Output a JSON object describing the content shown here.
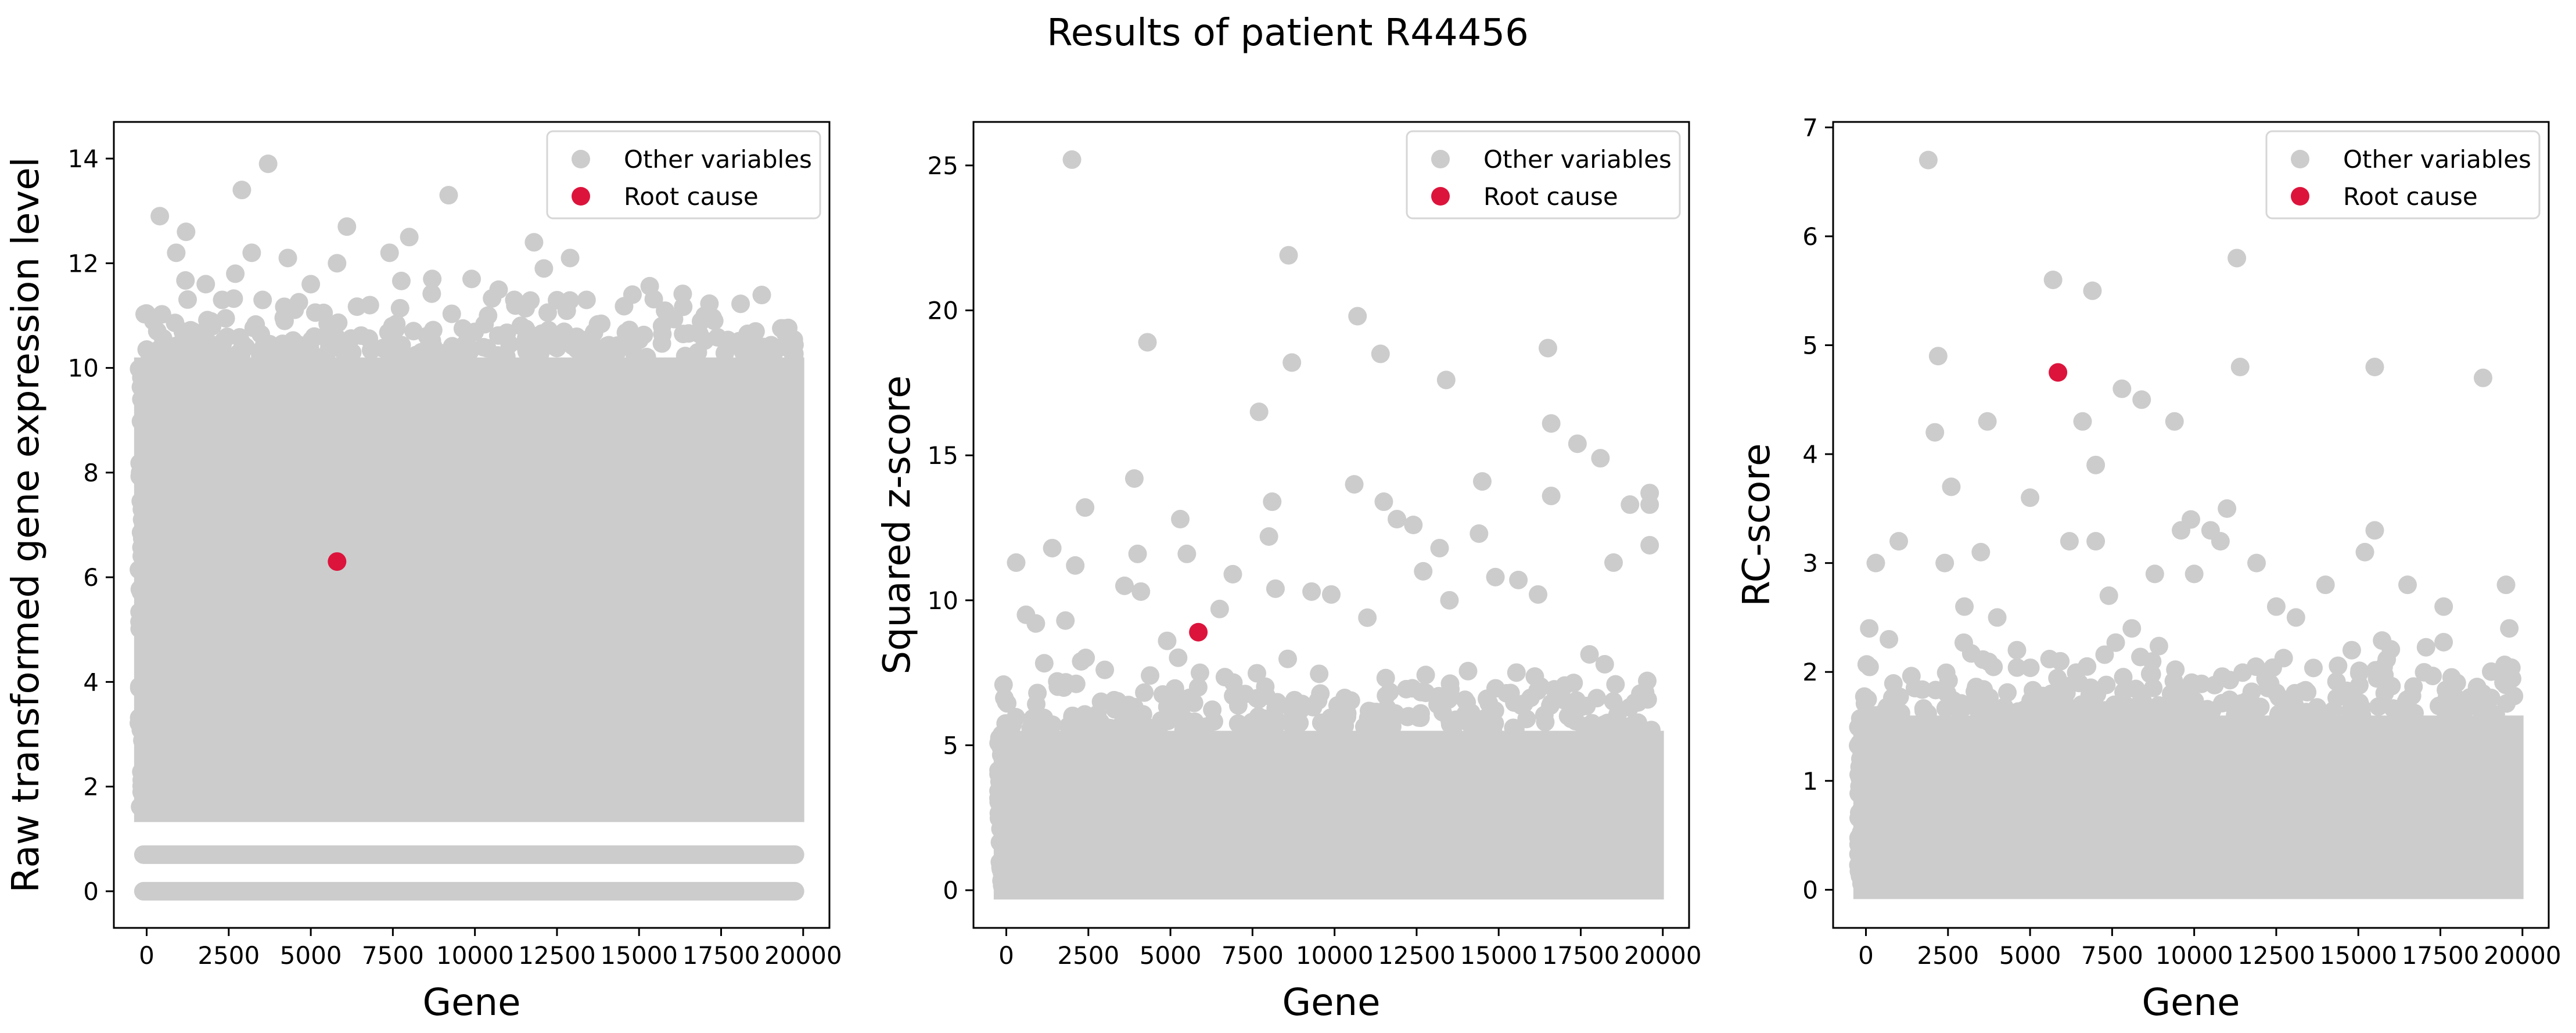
{
  "figure": {
    "title": "Results of patient R44456"
  },
  "chart_data": [
    {
      "type": "scatter",
      "xlabel": "Gene",
      "ylabel": "Raw transformed gene expression level",
      "xlim": [
        -1000,
        20800
      ],
      "ylim": [
        -0.7,
        14.7
      ],
      "xticks": [
        0,
        2500,
        5000,
        7500,
        10000,
        12500,
        15000,
        17500,
        20000
      ],
      "yticks": [
        0,
        2,
        4,
        6,
        8,
        10,
        12,
        14
      ],
      "legend_position": "top-right",
      "series": [
        {
          "name": "Other variables",
          "color": "#cccccc",
          "distribution": "dense",
          "base_band": [
            1.5,
            10.2
          ],
          "bottom_rows": [
            0,
            0.7
          ],
          "outliers": [
            [
              400,
              12.9
            ],
            [
              900,
              12.2
            ],
            [
              1200,
              12.6
            ],
            [
              1800,
              11.6
            ],
            [
              2300,
              11.3
            ],
            [
              2700,
              11.8
            ],
            [
              2900,
              13.4
            ],
            [
              3200,
              12.2
            ],
            [
              3700,
              13.9
            ],
            [
              4300,
              12.1
            ],
            [
              5000,
              11.6
            ],
            [
              5800,
              12.0
            ],
            [
              6100,
              12.7
            ],
            [
              6800,
              11.2
            ],
            [
              7400,
              12.2
            ],
            [
              8000,
              12.5
            ],
            [
              8700,
              11.7
            ],
            [
              9200,
              13.3
            ],
            [
              9900,
              11.7
            ],
            [
              10400,
              11.0
            ],
            [
              11200,
              11.3
            ],
            [
              11800,
              12.4
            ],
            [
              12100,
              11.9
            ],
            [
              12900,
              12.1
            ],
            [
              13400,
              11.3
            ],
            [
              14800,
              11.4
            ],
            [
              15700,
              10.8
            ],
            [
              17000,
              11.0
            ],
            [
              17700,
              10.5
            ],
            [
              18500,
              10.3
            ],
            [
              19600,
              10.6
            ]
          ]
        },
        {
          "name": "Root cause",
          "color": "#dc143c",
          "points": [
            [
              5800,
              6.3
            ]
          ]
        }
      ]
    },
    {
      "type": "scatter",
      "xlabel": "Gene",
      "ylabel": "Squared z-score",
      "xlim": [
        -1000,
        20800
      ],
      "ylim": [
        -1.3,
        26.5
      ],
      "xticks": [
        0,
        2500,
        5000,
        7500,
        10000,
        12500,
        15000,
        17500,
        20000
      ],
      "yticks": [
        0,
        5,
        10,
        15,
        20,
        25
      ],
      "legend_position": "top-right",
      "series": [
        {
          "name": "Other variables",
          "color": "#cccccc",
          "distribution": "dense",
          "base_band": [
            0,
            5.5
          ],
          "outliers": [
            [
              300,
              11.3
            ],
            [
              600,
              9.5
            ],
            [
              900,
              9.2
            ],
            [
              1400,
              11.8
            ],
            [
              1800,
              9.3
            ],
            [
              2000,
              25.2
            ],
            [
              2100,
              11.2
            ],
            [
              2400,
              13.2
            ],
            [
              3000,
              7.6
            ],
            [
              3600,
              10.5
            ],
            [
              3900,
              14.2
            ],
            [
              4000,
              11.6
            ],
            [
              4100,
              10.3
            ],
            [
              4300,
              18.9
            ],
            [
              4900,
              8.6
            ],
            [
              5300,
              12.8
            ],
            [
              5500,
              11.6
            ],
            [
              5900,
              7.5
            ],
            [
              6500,
              9.7
            ],
            [
              6900,
              10.9
            ],
            [
              7700,
              16.5
            ],
            [
              8000,
              12.2
            ],
            [
              8100,
              13.4
            ],
            [
              8200,
              10.4
            ],
            [
              8600,
              21.9
            ],
            [
              8700,
              18.2
            ],
            [
              9300,
              10.3
            ],
            [
              9900,
              10.2
            ],
            [
              10600,
              14.0
            ],
            [
              10700,
              19.8
            ],
            [
              11000,
              9.4
            ],
            [
              11400,
              18.5
            ],
            [
              11500,
              13.4
            ],
            [
              11900,
              12.8
            ],
            [
              12400,
              12.6
            ],
            [
              12700,
              11.0
            ],
            [
              13200,
              11.8
            ],
            [
              13400,
              17.6
            ],
            [
              13500,
              10.0
            ],
            [
              14400,
              12.3
            ],
            [
              14500,
              14.1
            ],
            [
              14900,
              10.8
            ],
            [
              15600,
              10.7
            ],
            [
              16200,
              10.2
            ],
            [
              16500,
              18.7
            ],
            [
              16600,
              16.1
            ],
            [
              16600,
              13.6
            ],
            [
              17400,
              15.4
            ],
            [
              18100,
              14.9
            ],
            [
              18500,
              11.3
            ],
            [
              19000,
              13.3
            ],
            [
              19600,
              13.7
            ],
            [
              19600,
              13.3
            ],
            [
              19600,
              11.9
            ]
          ]
        },
        {
          "name": "Root cause",
          "color": "#dc143c",
          "points": [
            [
              5850,
              8.9
            ]
          ]
        }
      ]
    },
    {
      "type": "scatter",
      "xlabel": "Gene",
      "ylabel": "RC-score",
      "xlim": [
        -1000,
        20800
      ],
      "ylim": [
        -0.35,
        7.05
      ],
      "xticks": [
        0,
        2500,
        5000,
        7500,
        10000,
        12500,
        15000,
        17500,
        20000
      ],
      "yticks": [
        0,
        1,
        2,
        3,
        4,
        5,
        6,
        7
      ],
      "legend_position": "top-right",
      "series": [
        {
          "name": "Other variables",
          "color": "#cccccc",
          "distribution": "dense",
          "base_band": [
            0,
            1.6
          ],
          "outliers": [
            [
              100,
              2.4
            ],
            [
              300,
              3.0
            ],
            [
              700,
              2.3
            ],
            [
              1000,
              3.2
            ],
            [
              1900,
              6.7
            ],
            [
              2100,
              4.2
            ],
            [
              2200,
              4.9
            ],
            [
              2400,
              3.0
            ],
            [
              2600,
              3.7
            ],
            [
              3000,
              2.6
            ],
            [
              3500,
              3.1
            ],
            [
              3700,
              4.3
            ],
            [
              4000,
              2.5
            ],
            [
              4600,
              2.2
            ],
            [
              5000,
              3.6
            ],
            [
              5700,
              5.6
            ],
            [
              6200,
              3.2
            ],
            [
              6600,
              4.3
            ],
            [
              6900,
              5.5
            ],
            [
              7000,
              3.2
            ],
            [
              7000,
              3.9
            ],
            [
              7400,
              2.7
            ],
            [
              7800,
              4.6
            ],
            [
              8100,
              2.4
            ],
            [
              8400,
              4.5
            ],
            [
              8800,
              2.9
            ],
            [
              9400,
              4.3
            ],
            [
              9600,
              3.3
            ],
            [
              9900,
              3.4
            ],
            [
              10000,
              2.9
            ],
            [
              10500,
              3.3
            ],
            [
              10800,
              3.2
            ],
            [
              11000,
              3.5
            ],
            [
              11300,
              5.8
            ],
            [
              11400,
              4.8
            ],
            [
              11900,
              3.0
            ],
            [
              12500,
              2.6
            ],
            [
              13100,
              2.5
            ],
            [
              14000,
              2.8
            ],
            [
              14800,
              2.2
            ],
            [
              15200,
              3.1
            ],
            [
              15500,
              3.3
            ],
            [
              15500,
              4.8
            ],
            [
              16500,
              2.8
            ],
            [
              17600,
              2.6
            ],
            [
              18000,
              1.9
            ],
            [
              18800,
              4.7
            ],
            [
              19500,
              2.8
            ],
            [
              19600,
              2.4
            ]
          ]
        },
        {
          "name": "Root cause",
          "color": "#dc143c",
          "points": [
            [
              5850,
              4.75
            ]
          ]
        }
      ]
    }
  ]
}
